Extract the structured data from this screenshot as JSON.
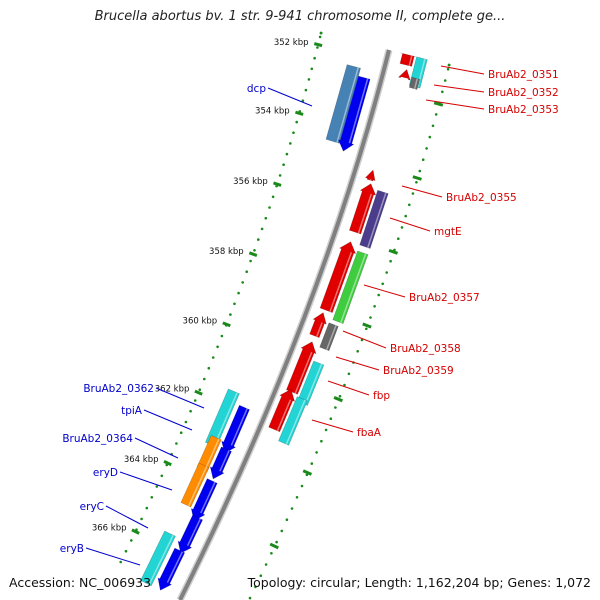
{
  "title": "Brucella abortus bv. 1 str. 9-941 chromosome II, complete ge...",
  "footer": {
    "accession": "Accession: NC_006933",
    "topology": "Topology: circular; Length: 1,162,204 bp; Genes: 1,072"
  },
  "colors": {
    "axis": "#808080",
    "tick": "#1a8a1a",
    "label_right": "#d40000",
    "label_left": "#0000cc"
  },
  "ticks": [
    "352 kbp",
    "354 kbp",
    "356 kbp",
    "358 kbp",
    "360 kbp",
    "362 kbp",
    "364 kbp",
    "366 kbp"
  ],
  "genes_right": [
    {
      "label": "BruAb2_0351"
    },
    {
      "label": "BruAb2_0352"
    },
    {
      "label": "BruAb2_0353"
    },
    {
      "label": "BruAb2_0355"
    },
    {
      "label": "mgtE"
    },
    {
      "label": "BruAb2_0357"
    },
    {
      "label": "BruAb2_0358"
    },
    {
      "label": "BruAb2_0359"
    },
    {
      "label": "fbp"
    },
    {
      "label": "fbaA"
    }
  ],
  "genes_left": [
    {
      "label": "dcp"
    },
    {
      "label": "BruAb2_0362"
    },
    {
      "label": "tpiA"
    },
    {
      "label": "BruAb2_0364"
    },
    {
      "label": "eryD"
    },
    {
      "label": "eryC"
    },
    {
      "label": "eryB"
    }
  ]
}
